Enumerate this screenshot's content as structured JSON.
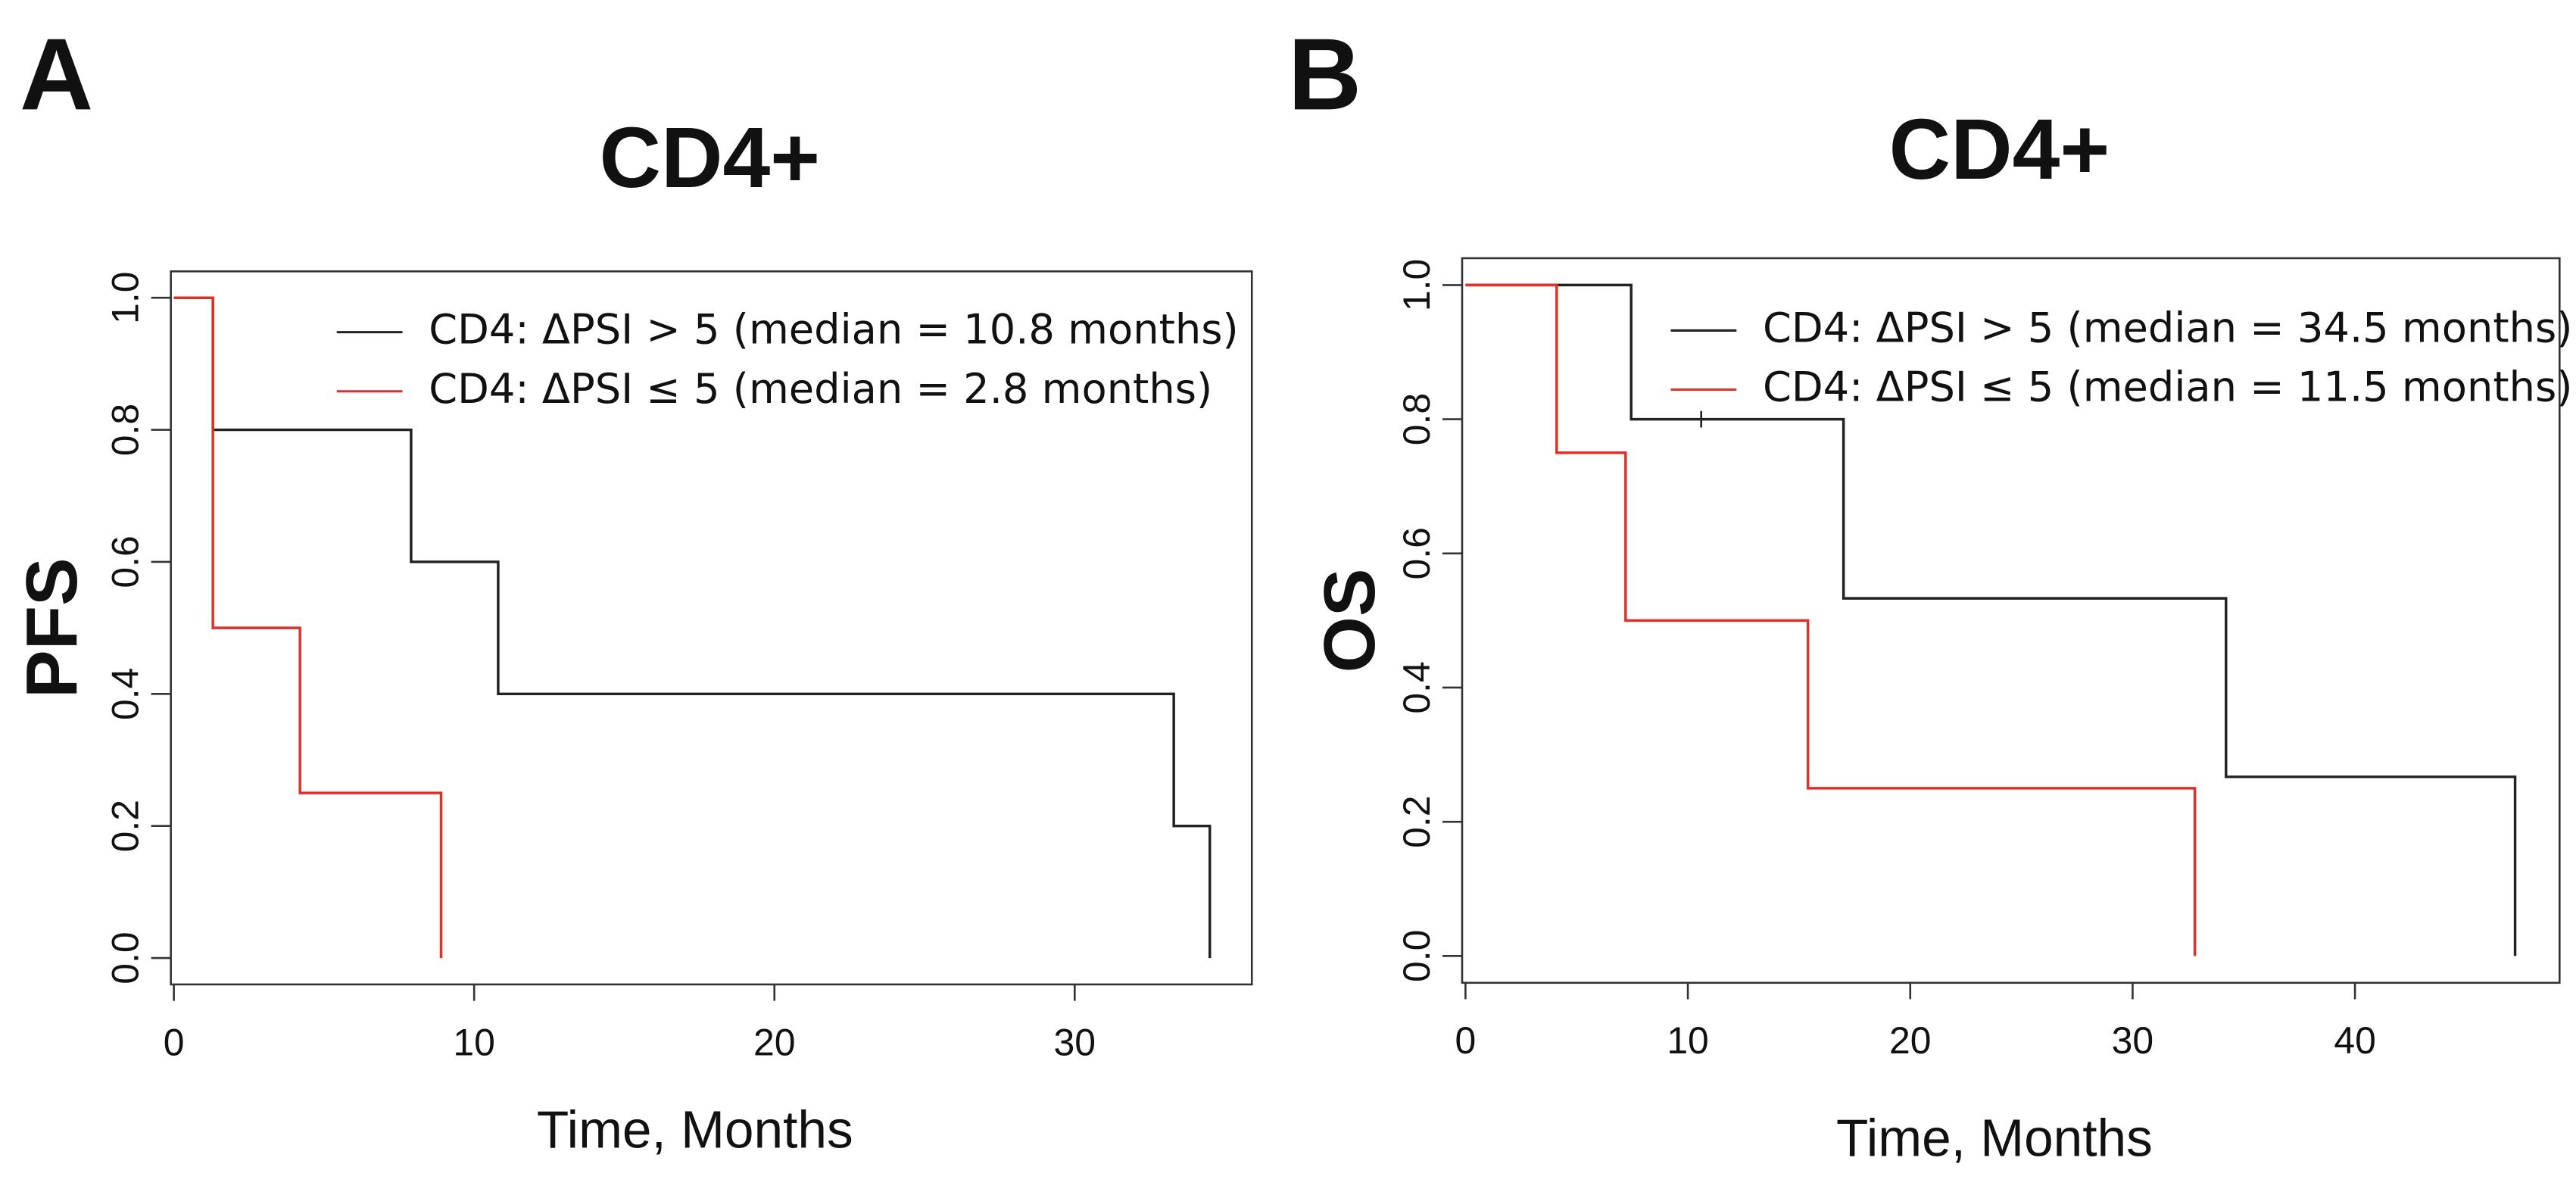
{
  "chart_data": [
    {
      "type": "line",
      "panel": "A",
      "title": "CD4+",
      "ylabel": "PFS",
      "xlabel": "Time, Months",
      "xlim": [
        -0.1,
        35.9
      ],
      "ylim": [
        -0.04,
        1.04
      ],
      "xticks": [
        0,
        10,
        20,
        30
      ],
      "yticks": [
        {
          "value": 0,
          "label": "0.0"
        },
        {
          "value": 0.2,
          "label": "0.2"
        },
        {
          "value": 0.4,
          "label": "0.4"
        },
        {
          "value": 0.6,
          "label": "0.6"
        },
        {
          "value": 0.8,
          "label": "0.8"
        },
        {
          "value": 1,
          "label": "1.0"
        }
      ],
      "legend": "top right",
      "series": [
        {
          "name": "CD4: ΔPSI > 5 (median = 10.8 months)",
          "color": "#222222",
          "x": [
            0,
            1.3,
            7.9,
            10.8,
            33.3,
            34.5
          ],
          "values": [
            1,
            0.8,
            0.6,
            0.4,
            0.2,
            0
          ]
        },
        {
          "name": "CD4: ΔPSI ≤ 5 (median = 2.8 months)",
          "color": "#e0302a",
          "x": [
            0,
            1.3,
            4.2,
            8.9
          ],
          "values": [
            1,
            0.5,
            0.25,
            0
          ]
        }
      ]
    },
    {
      "type": "line",
      "panel": "B",
      "title": "CD4+",
      "ylabel": "OS",
      "xlabel": "Time, Months",
      "xlim": [
        -0.15,
        49.2
      ],
      "ylim": [
        -0.04,
        1.04
      ],
      "xticks": [
        0,
        10,
        20,
        30,
        40
      ],
      "yticks": [
        {
          "value": 0,
          "label": "0.0"
        },
        {
          "value": 0.2,
          "label": "0.2"
        },
        {
          "value": 0.4,
          "label": "0.4"
        },
        {
          "value": 0.6,
          "label": "0.6"
        },
        {
          "value": 0.8,
          "label": "0.8"
        },
        {
          "value": 1,
          "label": "1.0"
        }
      ],
      "legend": "top right",
      "series": [
        {
          "name": "CD4: ΔPSI > 5 (median = 34.5 months)",
          "color": "#222222",
          "x": [
            0,
            7.45,
            17.0,
            34.2,
            47.2
          ],
          "values": [
            1,
            0.8,
            0.533,
            0.267,
            0
          ],
          "censor_x": [
            10.6
          ],
          "censor_values": [
            0.8
          ]
        },
        {
          "name": "CD4: ΔPSI ≤ 5 (median = 11.5 months)",
          "color": "#e0302a",
          "x": [
            0,
            4.1,
            7.2,
            15.4,
            32.8
          ],
          "values": [
            1,
            0.75,
            0.5,
            0.25,
            0
          ]
        }
      ]
    }
  ]
}
